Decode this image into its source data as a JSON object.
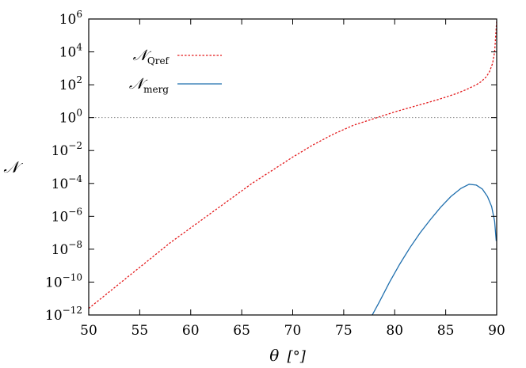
{
  "chart_data": {
    "type": "line",
    "xlabel": "θ",
    "xunit": "[°]",
    "ylabel": "𝒩",
    "xlim": [
      50,
      90
    ],
    "ylim_exponent": [
      -12,
      6
    ],
    "yscale": "log",
    "x_ticks": [
      "50",
      "55",
      "60",
      "65",
      "70",
      "75",
      "80",
      "85",
      "90"
    ],
    "y_ticks": [
      {
        "base": "10",
        "exp": "6"
      },
      {
        "base": "10",
        "exp": "4"
      },
      {
        "base": "10",
        "exp": "2"
      },
      {
        "base": "10",
        "exp": "0"
      },
      {
        "base": "10",
        "exp": "−2"
      },
      {
        "base": "10",
        "exp": "−4"
      },
      {
        "base": "10",
        "exp": "−6"
      },
      {
        "base": "10",
        "exp": "−8"
      },
      {
        "base": "10",
        "exp": "−10"
      },
      {
        "base": "10",
        "exp": "−12"
      }
    ],
    "reference_line": {
      "y": 1,
      "color": "#888888",
      "style": "dotted"
    },
    "legend_position": "top-left",
    "series": [
      {
        "name": "𝒩",
        "name_sub": "Qref",
        "color": "#e31a1c",
        "style": "dashed",
        "x": [
          50,
          52,
          54,
          56,
          58,
          60,
          62,
          64,
          66,
          68,
          70,
          72,
          74,
          76,
          78,
          80,
          82,
          84,
          85,
          86,
          87,
          88,
          88.5,
          89,
          89.3,
          89.6,
          89.8,
          90
        ],
        "log10_y": [
          -11.6,
          -10.6,
          -9.6,
          -8.6,
          -7.6,
          -6.7,
          -5.8,
          -4.9,
          -4.0,
          -3.2,
          -2.4,
          -1.65,
          -1.0,
          -0.45,
          -0.05,
          0.35,
          0.7,
          1.05,
          1.25,
          1.45,
          1.7,
          2.0,
          2.2,
          2.5,
          2.8,
          3.3,
          4.0,
          5.9
        ]
      },
      {
        "name": "𝒩",
        "name_sub": "merg",
        "color": "#1f6fae",
        "style": "solid",
        "x": [
          77.8,
          78.5,
          79.5,
          80.5,
          81.5,
          82.5,
          83.5,
          84.5,
          85.5,
          86.5,
          87.3,
          88.0,
          88.6,
          89.1,
          89.5,
          89.8,
          89.95
        ],
        "log10_y": [
          -12.0,
          -11.2,
          -10.0,
          -8.9,
          -7.9,
          -7.0,
          -6.2,
          -5.45,
          -4.8,
          -4.3,
          -4.05,
          -4.1,
          -4.35,
          -4.8,
          -5.4,
          -6.3,
          -7.5
        ]
      }
    ]
  }
}
